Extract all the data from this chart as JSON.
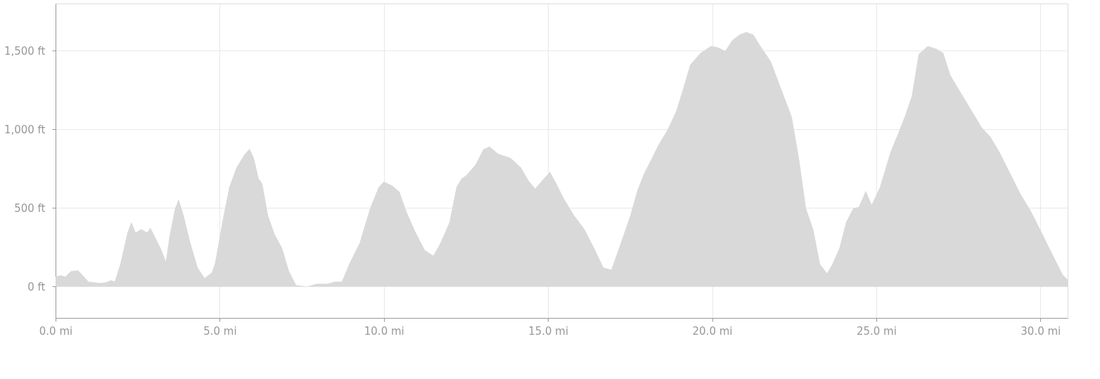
{
  "chart_data": {
    "type": "area",
    "x": [
      0,
      0.15,
      0.3,
      0.47,
      0.69,
      0.79,
      1.0,
      1.33,
      1.54,
      1.69,
      1.8,
      1.97,
      2.19,
      2.31,
      2.44,
      2.61,
      2.79,
      2.89,
      3.04,
      3.21,
      3.36,
      3.47,
      3.64,
      3.75,
      3.9,
      4.11,
      4.33,
      4.54,
      4.76,
      4.86,
      5.08,
      5.29,
      5.51,
      5.76,
      5.91,
      6.04,
      6.19,
      6.3,
      6.47,
      6.68,
      6.9,
      7.11,
      7.33,
      7.65,
      7.97,
      8.29,
      8.51,
      8.72,
      8.94,
      9.26,
      9.58,
      9.84,
      10.0,
      10.26,
      10.48,
      10.69,
      10.97,
      11.25,
      11.51,
      11.72,
      12.0,
      12.21,
      12.36,
      12.51,
      12.79,
      13.03,
      13.22,
      13.48,
      13.86,
      14.18,
      14.4,
      14.61,
      14.83,
      15.06,
      15.26,
      15.47,
      15.79,
      16.11,
      16.44,
      16.69,
      16.93,
      17.18,
      17.51,
      17.72,
      17.93,
      18.15,
      18.36,
      18.64,
      18.9,
      19.11,
      19.33,
      19.65,
      19.97,
      20.18,
      20.4,
      20.61,
      20.83,
      21.04,
      21.26,
      21.47,
      21.79,
      22.11,
      22.43,
      22.65,
      22.86,
      23.08,
      23.29,
      23.5,
      23.66,
      23.87,
      24.08,
      24.3,
      24.47,
      24.68,
      24.86,
      25.11,
      25.43,
      25.65,
      25.86,
      26.08,
      26.29,
      26.57,
      26.83,
      27.04,
      27.26,
      27.58,
      27.9,
      28.22,
      28.48,
      28.76,
      29.08,
      29.4,
      29.72,
      30.04,
      30.36,
      30.68,
      30.83
    ],
    "series": [
      {
        "color": "#d9d9d9",
        "values": [
          62,
          71,
          62,
          98,
          102,
          80,
          31,
          22,
          27,
          40,
          31,
          142,
          343,
          409,
          343,
          365,
          343,
          374,
          311,
          240,
          160,
          320,
          498,
          556,
          454,
          276,
          120,
          53,
          89,
          151,
          409,
          632,
          756,
          841,
          876,
          818,
          685,
          654,
          454,
          329,
          245,
          98,
          9,
          0,
          18,
          18,
          31,
          31,
          142,
          276,
          498,
          632,
          667,
          641,
          601,
          476,
          343,
          231,
          196,
          276,
          409,
          632,
          685,
          707,
          774,
          872,
          890,
          845,
          818,
          756,
          676,
          623,
          676,
          730,
          654,
          565,
          454,
          365,
          231,
          120,
          107,
          254,
          454,
          610,
          721,
          810,
          899,
          996,
          1112,
          1254,
          1410,
          1486,
          1530,
          1521,
          1499,
          1566,
          1601,
          1619,
          1601,
          1530,
          1432,
          1254,
          1077,
          810,
          498,
          365,
          142,
          85,
          142,
          240,
          409,
          498,
          507,
          609,
          520,
          632,
          854,
          965,
          1077,
          1210,
          1477,
          1530,
          1512,
          1486,
          1343,
          1232,
          1121,
          1010,
          952,
          854,
          721,
          587,
          476,
          343,
          209,
          76,
          44
        ]
      }
    ],
    "xlim": [
      0,
      30.83
    ],
    "xticks": [
      {
        "value": 0,
        "label": "0.0 mi"
      },
      {
        "value": 5,
        "label": "5.0 mi"
      },
      {
        "value": 10,
        "label": "10.0 mi"
      },
      {
        "value": 15,
        "label": "15.0 mi"
      },
      {
        "value": 20,
        "label": "20.0 mi"
      },
      {
        "value": 25,
        "label": "25.0 mi"
      },
      {
        "value": 30,
        "label": "30.0 mi"
      }
    ],
    "ylim": [
      -200,
      1800
    ],
    "yticks": [
      {
        "value": 0,
        "label": "0 ft"
      },
      {
        "value": 500,
        "label": "500 ft"
      },
      {
        "value": 1000,
        "label": "1,000 ft"
      },
      {
        "value": 1500,
        "label": "1,500 ft"
      }
    ],
    "grid": true
  }
}
